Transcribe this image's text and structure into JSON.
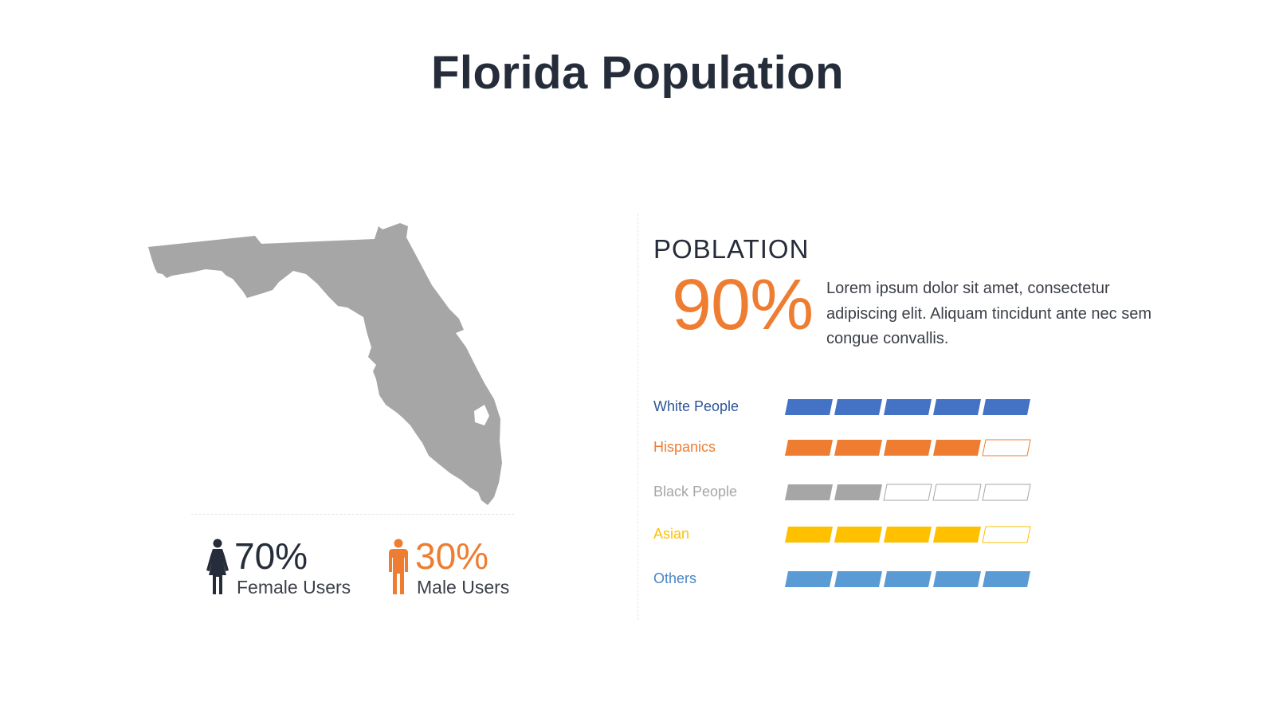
{
  "title": "Florida Population",
  "colors": {
    "title": "#262d3a",
    "orange": "#ee7d31",
    "map": "#a6a6a6",
    "dark": "#262d3a"
  },
  "map": {
    "icon": "florida-map-silhouette"
  },
  "gender": {
    "female": {
      "percent": "70%",
      "label": "Female Users",
      "value": 70,
      "icon": "female-person-icon",
      "color": "#262d3a"
    },
    "male": {
      "percent": "30%",
      "label": "Male Users",
      "value": 30,
      "icon": "male-person-icon",
      "color": "#ee7d31"
    }
  },
  "population": {
    "heading": "POBLATION",
    "percent": "90%",
    "description": "Lorem ipsum dolor sit amet, consectetur adipiscing elit. Aliquam tincidunt ante nec sem congue convallis."
  },
  "groups": [
    {
      "label": "White People",
      "filled": 5,
      "total": 5,
      "color": "#4472c4",
      "label_color": "#2f5597"
    },
    {
      "label": "Hispanics",
      "filled": 4,
      "total": 5,
      "color": "#ee7d31",
      "label_color": "#ee7d31"
    },
    {
      "label": "Black People",
      "filled": 2,
      "total": 5,
      "color": "#a6a6a6",
      "label_color": "#a6a6a6"
    },
    {
      "label": "Asian",
      "filled": 4,
      "total": 5,
      "color": "#ffc000",
      "label_color": "#ffc000"
    },
    {
      "label": "Others",
      "filled": 5,
      "total": 5,
      "color": "#5b9bd5",
      "label_color": "#4a86c5"
    }
  ]
}
